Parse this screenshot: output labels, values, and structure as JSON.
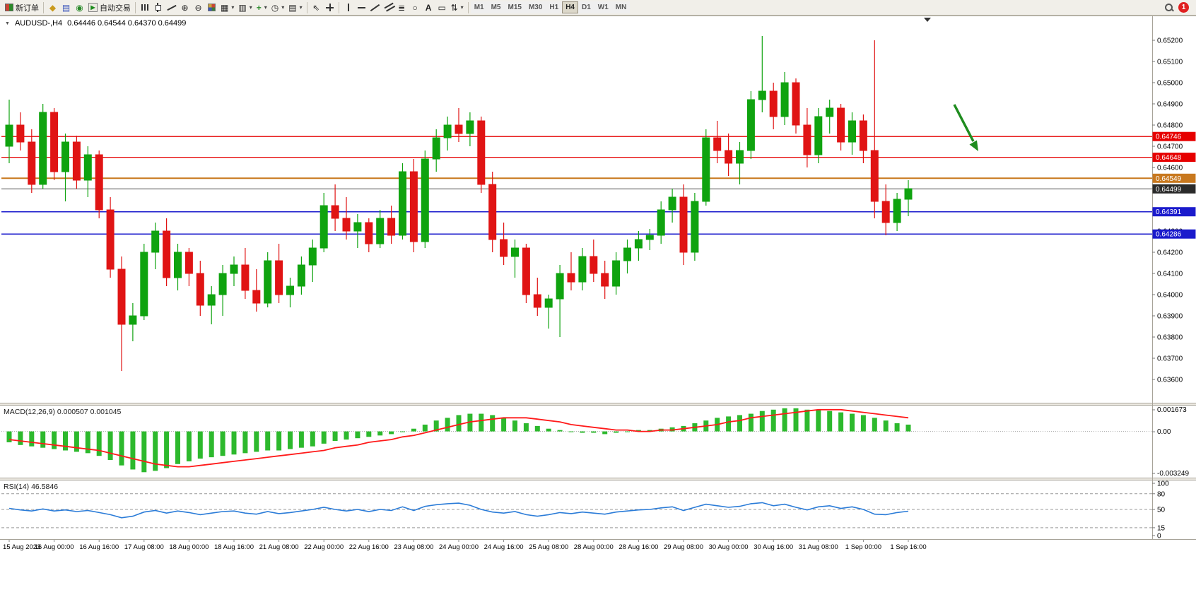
{
  "toolbar": {
    "new_order_label": "新订单",
    "auto_trading_label": "自动交易",
    "icons": {
      "community": "◆",
      "market": "▤",
      "help": "◉",
      "play": "▶",
      "zoom_in": "⊕",
      "zoom_out": "⊖",
      "new_chart": "▦",
      "profiles": "▥",
      "indicators_plus": "+",
      "periods_clock": "◷",
      "templates": "▤",
      "cursor": "⇖",
      "fibonacci": "≣",
      "shapes": "○",
      "text": "A",
      "label": "▭",
      "arrows": "⇅",
      "dropdown": "▾",
      "collapse": "▼"
    },
    "timeframes": [
      "M1",
      "M5",
      "M15",
      "M30",
      "H1",
      "H4",
      "D1",
      "W1",
      "MN"
    ],
    "active_timeframe": "H4",
    "notification_count": "1"
  },
  "chart": {
    "title": "AUDUSD-,H4",
    "ohlc": "0.64446 0.64544 0.64370 0.64499"
  },
  "indicators": {
    "macd_label": "MACD(12,26,9) 0.000507 0.001045",
    "rsi_label": "RSI(14) 46.5846"
  },
  "chart_data": {
    "type": "candlestick",
    "symbol": "AUDUSD-",
    "period": "H4",
    "price_axis": [
      "0.65200",
      "0.65100",
      "0.65000",
      "0.64900",
      "0.64800",
      "0.64700",
      "0.64600",
      "0.64500",
      "0.64400",
      "0.64300",
      "0.64200",
      "0.64100",
      "0.64000",
      "0.63900",
      "0.63800",
      "0.63700",
      "0.63600"
    ],
    "time_labels": [
      "15 Aug 2023",
      "16 Aug 00:00",
      "16 Aug 16:00",
      "17 Aug 08:00",
      "18 Aug 00:00",
      "18 Aug 16:00",
      "21 Aug 08:00",
      "22 Aug 00:00",
      "22 Aug 16:00",
      "23 Aug 08:00",
      "24 Aug 00:00",
      "24 Aug 16:00",
      "25 Aug 08:00",
      "28 Aug 00:00",
      "28 Aug 16:00",
      "29 Aug 08:00",
      "30 Aug 00:00",
      "30 Aug 16:00",
      "31 Aug 08:00",
      "1 Sep 00:00",
      "1 Sep 16:00"
    ],
    "candles": [
      [
        0.647,
        0.6492,
        0.6462,
        0.648
      ],
      [
        0.648,
        0.6486,
        0.6468,
        0.6472
      ],
      [
        0.6472,
        0.6478,
        0.6448,
        0.6452
      ],
      [
        0.6452,
        0.649,
        0.645,
        0.6486
      ],
      [
        0.6486,
        0.6488,
        0.6454,
        0.6458
      ],
      [
        0.6458,
        0.6476,
        0.6444,
        0.6472
      ],
      [
        0.6472,
        0.6475,
        0.645,
        0.6454
      ],
      [
        0.6454,
        0.647,
        0.6446,
        0.6466
      ],
      [
        0.6466,
        0.6468,
        0.6436,
        0.644
      ],
      [
        0.644,
        0.6446,
        0.6408,
        0.6412
      ],
      [
        0.6412,
        0.6418,
        0.6364,
        0.6386
      ],
      [
        0.6386,
        0.6396,
        0.6378,
        0.639
      ],
      [
        0.639,
        0.6424,
        0.6388,
        0.642
      ],
      [
        0.642,
        0.6434,
        0.6412,
        0.643
      ],
      [
        0.643,
        0.6436,
        0.6404,
        0.6408
      ],
      [
        0.6408,
        0.6424,
        0.6402,
        0.642
      ],
      [
        0.642,
        0.6422,
        0.6404,
        0.641
      ],
      [
        0.641,
        0.6416,
        0.639,
        0.6395
      ],
      [
        0.6395,
        0.6404,
        0.6386,
        0.64
      ],
      [
        0.64,
        0.6414,
        0.639,
        0.641
      ],
      [
        0.641,
        0.6418,
        0.6404,
        0.6414
      ],
      [
        0.6414,
        0.6422,
        0.6398,
        0.6402
      ],
      [
        0.6402,
        0.6412,
        0.6392,
        0.6396
      ],
      [
        0.6396,
        0.642,
        0.6394,
        0.6416
      ],
      [
        0.6416,
        0.6424,
        0.6396,
        0.64
      ],
      [
        0.64,
        0.6408,
        0.6394,
        0.6404
      ],
      [
        0.6404,
        0.6418,
        0.64,
        0.6414
      ],
      [
        0.6414,
        0.6426,
        0.6406,
        0.6422
      ],
      [
        0.6422,
        0.6448,
        0.642,
        0.6442
      ],
      [
        0.6442,
        0.6452,
        0.643,
        0.6436
      ],
      [
        0.6436,
        0.6446,
        0.6426,
        0.643
      ],
      [
        0.643,
        0.6438,
        0.6422,
        0.6434
      ],
      [
        0.6434,
        0.6436,
        0.642,
        0.6424
      ],
      [
        0.6424,
        0.644,
        0.6422,
        0.6436
      ],
      [
        0.6436,
        0.6442,
        0.6424,
        0.6428
      ],
      [
        0.6428,
        0.6462,
        0.6426,
        0.6458
      ],
      [
        0.6458,
        0.6464,
        0.642,
        0.6425
      ],
      [
        0.6425,
        0.6468,
        0.6422,
        0.6464
      ],
      [
        0.6464,
        0.6478,
        0.6458,
        0.6474
      ],
      [
        0.6474,
        0.6484,
        0.6468,
        0.648
      ],
      [
        0.648,
        0.6488,
        0.6472,
        0.6476
      ],
      [
        0.6476,
        0.6486,
        0.647,
        0.6482
      ],
      [
        0.6482,
        0.6484,
        0.6448,
        0.6452
      ],
      [
        0.6452,
        0.6458,
        0.642,
        0.6426
      ],
      [
        0.6426,
        0.6434,
        0.6414,
        0.6418
      ],
      [
        0.6418,
        0.6426,
        0.6408,
        0.6422
      ],
      [
        0.6422,
        0.6424,
        0.6396,
        0.64
      ],
      [
        0.64,
        0.6408,
        0.639,
        0.6394
      ],
      [
        0.6394,
        0.64,
        0.6384,
        0.6398
      ],
      [
        0.6398,
        0.6414,
        0.638,
        0.641
      ],
      [
        0.641,
        0.642,
        0.6402,
        0.6406
      ],
      [
        0.6406,
        0.6422,
        0.6402,
        0.6418
      ],
      [
        0.6418,
        0.6426,
        0.6406,
        0.641
      ],
      [
        0.641,
        0.6416,
        0.6398,
        0.6404
      ],
      [
        0.6404,
        0.642,
        0.64,
        0.6416
      ],
      [
        0.6416,
        0.6426,
        0.641,
        0.6422
      ],
      [
        0.6422,
        0.643,
        0.6416,
        0.6426
      ],
      [
        0.6426,
        0.6431,
        0.6421,
        0.6428
      ],
      [
        0.6428,
        0.6444,
        0.6424,
        0.644
      ],
      [
        0.644,
        0.645,
        0.6434,
        0.6446
      ],
      [
        0.6446,
        0.6452,
        0.6414,
        0.642
      ],
      [
        0.642,
        0.6448,
        0.6416,
        0.6444
      ],
      [
        0.6444,
        0.6478,
        0.6442,
        0.6474
      ],
      [
        0.6474,
        0.6482,
        0.6462,
        0.6468
      ],
      [
        0.6468,
        0.6476,
        0.6456,
        0.6462
      ],
      [
        0.6462,
        0.6472,
        0.6452,
        0.6468
      ],
      [
        0.6468,
        0.6496,
        0.6464,
        0.6492
      ],
      [
        0.6492,
        0.6522,
        0.6486,
        0.6496
      ],
      [
        0.6496,
        0.65,
        0.6478,
        0.6484
      ],
      [
        0.6484,
        0.6505,
        0.648,
        0.65
      ],
      [
        0.65,
        0.6502,
        0.6476,
        0.648
      ],
      [
        0.648,
        0.6488,
        0.646,
        0.6466
      ],
      [
        0.6466,
        0.6488,
        0.6462,
        0.6484
      ],
      [
        0.6484,
        0.6492,
        0.6476,
        0.6488
      ],
      [
        0.6488,
        0.649,
        0.6468,
        0.6472
      ],
      [
        0.6472,
        0.6486,
        0.6466,
        0.6482
      ],
      [
        0.6482,
        0.6485,
        0.6462,
        0.6468
      ],
      [
        0.6468,
        0.652,
        0.6436,
        0.6444
      ],
      [
        0.6444,
        0.6452,
        0.6428,
        0.6434
      ],
      [
        0.6434,
        0.6448,
        0.643,
        0.6445
      ],
      [
        0.6445,
        0.6454,
        0.6437,
        0.645
      ]
    ],
    "hlines": [
      {
        "price": 0.64746,
        "label": "0.64746",
        "color": "#e60000",
        "width": 1.3
      },
      {
        "price": 0.64648,
        "label": "0.64648",
        "color": "#e60000",
        "width": 1.3
      },
      {
        "price": 0.64549,
        "label": "0.64549",
        "color": "#c8781e",
        "width": 2
      },
      {
        "price": 0.64499,
        "label": "0.64499",
        "color": "#555555",
        "width": 1,
        "tag_color": "#2b2b2b",
        "role": "current-price"
      },
      {
        "price": 0.64391,
        "label": "0.64391",
        "color": "#1a1acc",
        "width": 1.5
      },
      {
        "price": 0.64286,
        "label": "0.64286",
        "color": "#1a1acc",
        "width": 1.5
      }
    ],
    "colors": {
      "up": "#0fa30f",
      "down": "#e01414",
      "macd_histogram": "#2db92d",
      "macd_signal": "#ff1a1a",
      "rsi_line": "#2b7cd8",
      "annotation_arrow": "#1f8c1f"
    },
    "macd": {
      "axis_labels": [
        "0.001673",
        "0.00",
        "-0.003249"
      ],
      "histogram": [
        -0.0008,
        -0.001,
        -0.0011,
        -0.0012,
        -0.0013,
        -0.0014,
        -0.0015,
        -0.0016,
        -0.0018,
        -0.0021,
        -0.0025,
        -0.0028,
        -0.003,
        -0.0029,
        -0.0027,
        -0.0024,
        -0.0022,
        -0.002,
        -0.0019,
        -0.0018,
        -0.0017,
        -0.0016,
        -0.0015,
        -0.0014,
        -0.0014,
        -0.0013,
        -0.0012,
        -0.0011,
        -0.0009,
        -0.0007,
        -0.0006,
        -0.0005,
        -0.0004,
        -0.0003,
        -0.0002,
        0.0,
        0.0002,
        0.0005,
        0.0008,
        0.001,
        0.0012,
        0.0013,
        0.0013,
        0.0012,
        0.001,
        0.0008,
        0.0006,
        0.0004,
        0.0002,
        0.0001,
        0.0,
        -0.0001,
        -0.0001,
        -0.0002,
        -0.0001,
        0.0,
        0.0001,
        0.0001,
        0.0002,
        0.0003,
        0.0004,
        0.0006,
        0.0008,
        0.001,
        0.0011,
        0.0012,
        0.0013,
        0.0015,
        0.0016,
        0.0017,
        0.0017,
        0.0016,
        0.0016,
        0.0015,
        0.0014,
        0.0013,
        0.0012,
        0.001,
        0.0008,
        0.0006,
        0.0005
      ],
      "signal": [
        -0.0006,
        -0.0007,
        -0.0008,
        -0.0009,
        -0.001,
        -0.0011,
        -0.0012,
        -0.0013,
        -0.0014,
        -0.0016,
        -0.0018,
        -0.002,
        -0.0022,
        -0.0024,
        -0.0025,
        -0.0026,
        -0.0026,
        -0.0025,
        -0.0024,
        -0.0023,
        -0.0022,
        -0.0021,
        -0.002,
        -0.0019,
        -0.0018,
        -0.0017,
        -0.0016,
        -0.0015,
        -0.0014,
        -0.0012,
        -0.0011,
        -0.001,
        -0.0008,
        -0.0007,
        -0.0006,
        -0.0004,
        -0.0003,
        -0.0001,
        0.0001,
        0.0003,
        0.0005,
        0.0007,
        0.0008,
        0.0009,
        0.001,
        0.001,
        0.001,
        0.0009,
        0.0008,
        0.0007,
        0.0005,
        0.0004,
        0.0003,
        0.0002,
        0.0001,
        0.0001,
        0.0,
        0.0,
        0.0001,
        0.0001,
        0.0002,
        0.0003,
        0.0004,
        0.0005,
        0.0007,
        0.0008,
        0.001,
        0.0011,
        0.0012,
        0.0013,
        0.0014,
        0.0015,
        0.0016,
        0.0016,
        0.0016,
        0.0015,
        0.0014,
        0.0013,
        0.0012,
        0.0011,
        0.001
      ]
    },
    "rsi": {
      "axis_labels": [
        "100",
        "80",
        "50",
        "15",
        "0"
      ],
      "levels": [
        80,
        50,
        15
      ],
      "values": [
        52,
        49,
        47,
        51,
        47,
        49,
        46,
        48,
        44,
        40,
        34,
        37,
        45,
        48,
        43,
        47,
        44,
        40,
        43,
        46,
        47,
        43,
        41,
        46,
        42,
        44,
        47,
        50,
        54,
        50,
        47,
        50,
        46,
        50,
        48,
        55,
        48,
        56,
        59,
        61,
        62,
        58,
        50,
        45,
        43,
        46,
        40,
        37,
        40,
        44,
        42,
        45,
        43,
        41,
        45,
        47,
        49,
        50,
        53,
        55,
        48,
        54,
        60,
        57,
        54,
        56,
        61,
        63,
        57,
        60,
        54,
        49,
        55,
        57,
        52,
        55,
        50,
        41,
        40,
        44,
        46.58
      ]
    }
  }
}
